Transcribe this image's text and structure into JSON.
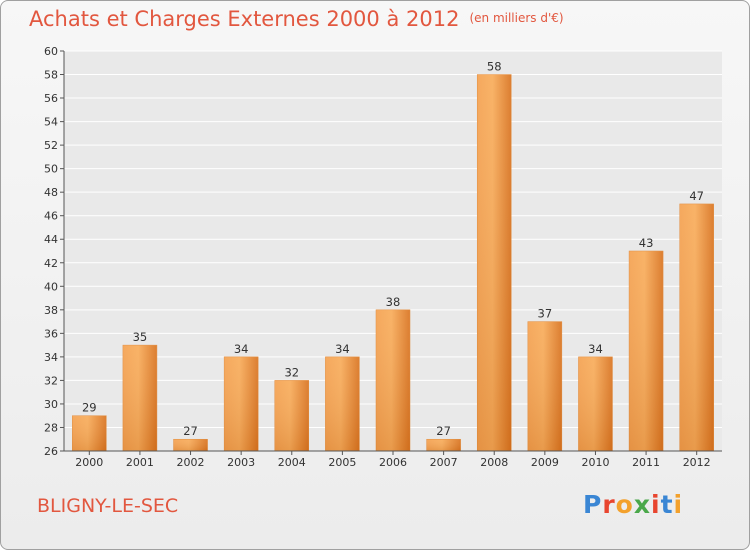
{
  "header": {
    "title": "Achats et Charges Externes 2000 à 2012",
    "unit": "(en milliers d'€)"
  },
  "footer": {
    "location": "BLIGNY-LE-SEC",
    "logo_text": "Proxiti"
  },
  "colors": {
    "title": "#e2573f",
    "bar_light": "#f8ac5a",
    "bar_dark": "#d9731f",
    "axis": "#555555",
    "grid": "#ffffff"
  },
  "chart_data": {
    "type": "bar",
    "categories": [
      "2000",
      "2001",
      "2002",
      "2003",
      "2004",
      "2005",
      "2006",
      "2007",
      "2008",
      "2009",
      "2010",
      "2011",
      "2012"
    ],
    "values": [
      29,
      35,
      27,
      34,
      32,
      34,
      38,
      27,
      58,
      37,
      34,
      43,
      47
    ],
    "ylim": [
      26,
      60
    ],
    "yticks": [
      26,
      28,
      30,
      32,
      34,
      36,
      38,
      40,
      42,
      44,
      46,
      48,
      50,
      52,
      54,
      56,
      58,
      60
    ],
    "grid": true,
    "data_labels": true
  }
}
